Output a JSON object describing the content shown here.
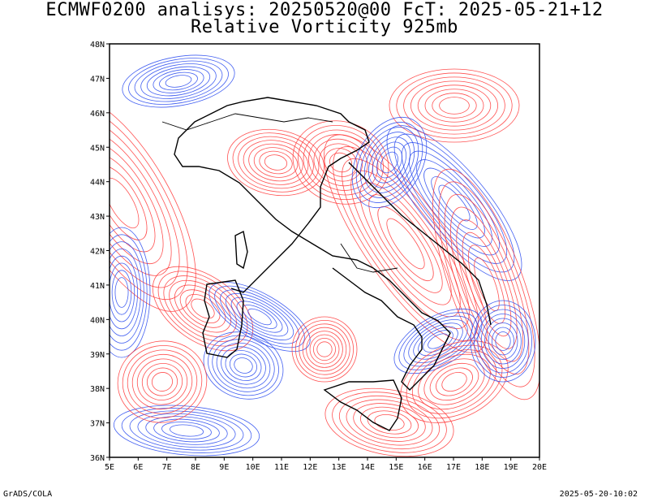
{
  "title_line1": "ECMWF0200 analisys: 20250520@00 FcT: 2025-05-21+12",
  "title_line2": "Relative Vorticity 925mb",
  "x_ticks": [
    "5E",
    "6E",
    "7E",
    "8E",
    "9E",
    "10E",
    "11E",
    "12E",
    "13E",
    "14E",
    "15E",
    "16E",
    "17E",
    "18E",
    "19E",
    "20E"
  ],
  "y_ticks": [
    "48N",
    "47N",
    "46N",
    "45N",
    "44N",
    "43N",
    "42N",
    "41N",
    "40N",
    "39N",
    "38N",
    "37N",
    "36N"
  ],
  "colors": {
    "positive": "#ff3333",
    "negative": "#2244ee",
    "frame": "#000000"
  },
  "footer_left": "GrADS/COLA",
  "footer_right": "2025-05-20-10:02"
}
